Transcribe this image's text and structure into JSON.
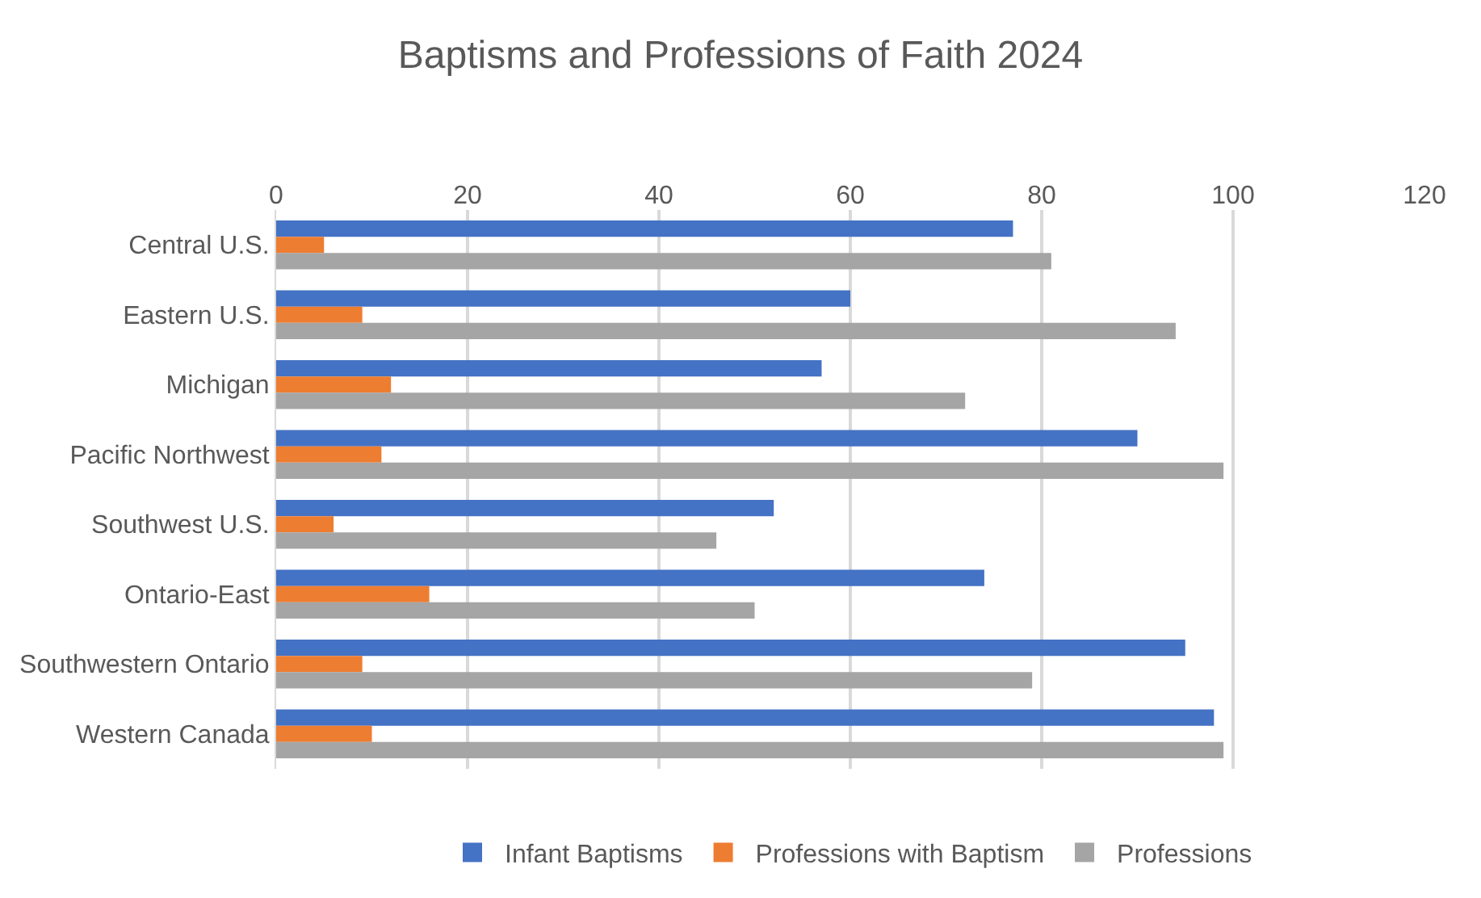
{
  "chart_data": {
    "type": "bar",
    "orientation": "horizontal",
    "title": "Baptisms and Professions of Faith 2024",
    "categories": [
      "Central U.S.",
      "Eastern U.S.",
      "Michigan",
      "Pacific Northwest",
      "Southwest U.S.",
      "Ontario-East",
      "Southwestern Ontario",
      "Western Canada"
    ],
    "series": [
      {
        "name": "Infant Baptisms",
        "color": "#4472c4",
        "values": [
          77,
          60,
          57,
          90,
          52,
          74,
          95,
          98
        ]
      },
      {
        "name": "Professions with Baptism",
        "color": "#ed7d31",
        "values": [
          5,
          9,
          12,
          11,
          6,
          16,
          9,
          10
        ]
      },
      {
        "name": "Professions",
        "color": "#a5a5a5",
        "values": [
          81,
          94,
          72,
          99,
          46,
          50,
          79,
          99
        ]
      }
    ],
    "xlim": [
      0,
      120
    ],
    "xticks": [
      0,
      20,
      40,
      60,
      80,
      100,
      120
    ],
    "grid": "x",
    "legend": "bottom"
  }
}
